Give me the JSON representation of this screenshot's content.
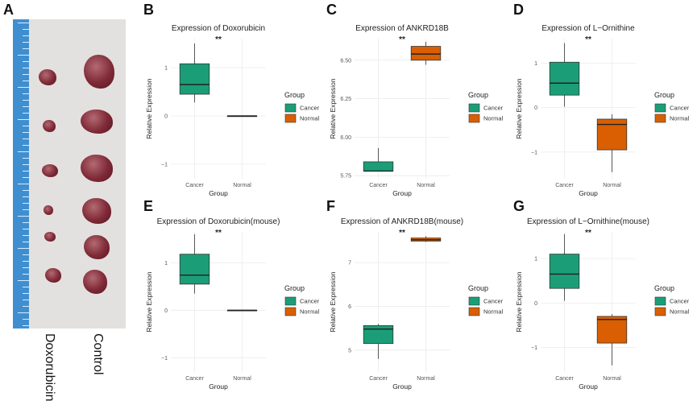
{
  "panels": {
    "A": {
      "label": "A",
      "sample_labels": [
        "Doxorubicin",
        "Control"
      ]
    },
    "B": {
      "label": "B"
    },
    "C": {
      "label": "C"
    },
    "D": {
      "label": "D"
    },
    "E": {
      "label": "E"
    },
    "F": {
      "label": "F"
    },
    "G": {
      "label": "G"
    }
  },
  "colors": {
    "cancer": "#1b9e77",
    "normal": "#d95f02"
  },
  "chart_data": [
    {
      "id": "B",
      "type": "box",
      "title": "Expression of Doxorubicin",
      "xlabel": "Group",
      "ylabel": "Relative Expression",
      "categories": [
        "Cancer",
        "Normal"
      ],
      "ylim": [
        -1.3,
        1.6
      ],
      "yticks": [
        -1,
        0,
        1
      ],
      "boxes": [
        {
          "group": "Cancer",
          "min": 0.28,
          "q1": 0.45,
          "median": 0.65,
          "q3": 1.08,
          "max": 1.5
        },
        {
          "group": "Normal",
          "min": 0,
          "q1": 0,
          "median": 0,
          "q3": 0,
          "max": 0
        }
      ],
      "significance": "**",
      "legend_title": "Group",
      "legend": [
        "Cancer",
        "Normal"
      ]
    },
    {
      "id": "C",
      "type": "box",
      "title": "Expression of ANKRD18B",
      "xlabel": "Group",
      "ylabel": "Relative Expression",
      "categories": [
        "Cancer",
        "Normal"
      ],
      "ylim": [
        5.73,
        6.64
      ],
      "yticks": [
        5.75,
        6.0,
        6.25,
        6.5
      ],
      "ytick_decimals": 2,
      "boxes": [
        {
          "group": "Cancer",
          "min": 5.78,
          "q1": 5.78,
          "median": 5.78,
          "q3": 5.84,
          "max": 5.93
        },
        {
          "group": "Normal",
          "min": 6.47,
          "q1": 6.5,
          "median": 6.54,
          "q3": 6.59,
          "max": 6.62
        }
      ],
      "significance": "**",
      "legend_title": "Group",
      "legend": [
        "Cancer",
        "Normal"
      ]
    },
    {
      "id": "D",
      "type": "box",
      "title": "Expression of L−Ornithine",
      "xlabel": "Group",
      "ylabel": "Relative Expression",
      "categories": [
        "Cancer",
        "Normal"
      ],
      "ylim": [
        -1.6,
        1.55
      ],
      "yticks": [
        -1,
        0,
        1
      ],
      "boxes": [
        {
          "group": "Cancer",
          "min": 0.02,
          "q1": 0.28,
          "median": 0.55,
          "q3": 1.02,
          "max": 1.45
        },
        {
          "group": "Normal",
          "min": -1.45,
          "q1": -0.95,
          "median": -0.38,
          "q3": -0.26,
          "max": -0.15
        }
      ],
      "significance": "**",
      "legend_title": "Group",
      "legend": [
        "Cancer",
        "Normal"
      ]
    },
    {
      "id": "E",
      "type": "box",
      "title": "Expression of Doxorubicin(mouse)",
      "xlabel": "Group",
      "ylabel": "Relative Expression",
      "categories": [
        "Cancer",
        "Normal"
      ],
      "ylim": [
        -1.3,
        1.65
      ],
      "yticks": [
        -1,
        0,
        1
      ],
      "boxes": [
        {
          "group": "Cancer",
          "min": 0.35,
          "q1": 0.55,
          "median": 0.74,
          "q3": 1.18,
          "max": 1.6
        },
        {
          "group": "Normal",
          "min": 0,
          "q1": 0,
          "median": 0,
          "q3": 0,
          "max": 0
        }
      ],
      "significance": "**",
      "legend_title": "Group",
      "legend": [
        "Cancer",
        "Normal"
      ]
    },
    {
      "id": "F",
      "type": "box",
      "title": "Expression of ANKRD18B(mouse)",
      "xlabel": "Group",
      "ylabel": "Relative Expression",
      "categories": [
        "Cancer",
        "Normal"
      ],
      "ylim": [
        4.5,
        7.7
      ],
      "yticks": [
        5,
        6,
        7
      ],
      "boxes": [
        {
          "group": "Cancer",
          "min": 4.8,
          "q1": 5.15,
          "median": 5.48,
          "q3": 5.56,
          "max": 5.6
        },
        {
          "group": "Normal",
          "min": 7.47,
          "q1": 7.49,
          "median": 7.52,
          "q3": 7.56,
          "max": 7.6
        }
      ],
      "significance": "**",
      "legend_title": "Group",
      "legend": [
        "Cancer",
        "Normal"
      ]
    },
    {
      "id": "G",
      "type": "box",
      "title": "Expression of L−Ornithine(mouse)",
      "xlabel": "Group",
      "ylabel": "Relative Expression",
      "categories": [
        "Cancer",
        "Normal"
      ],
      "ylim": [
        -1.55,
        1.6
      ],
      "yticks": [
        -1,
        0,
        1
      ],
      "boxes": [
        {
          "group": "Cancer",
          "min": 0.05,
          "q1": 0.33,
          "median": 0.65,
          "q3": 1.1,
          "max": 1.55
        },
        {
          "group": "Normal",
          "min": -1.4,
          "q1": -0.9,
          "median": -0.37,
          "q3": -0.3,
          "max": -0.25
        }
      ],
      "significance": "**",
      "legend_title": "Group",
      "legend": [
        "Cancer",
        "Normal"
      ]
    }
  ]
}
